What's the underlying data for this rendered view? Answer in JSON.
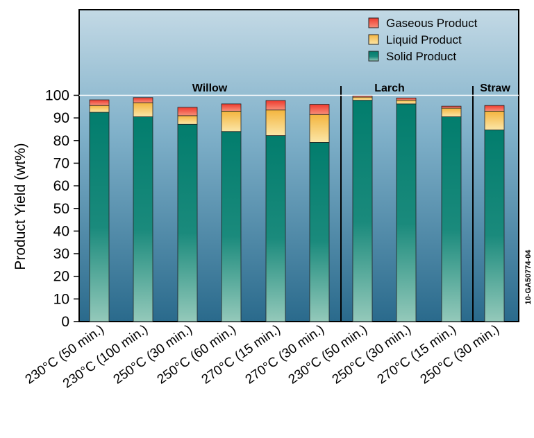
{
  "chart_data": {
    "type": "bar",
    "stacked": true,
    "ylabel": "Product Yield (wt%)",
    "ylim": [
      0,
      100
    ],
    "yticks": [
      0,
      10,
      20,
      30,
      40,
      50,
      60,
      70,
      80,
      90,
      100
    ],
    "categories": [
      "230°C (50 min.)",
      "230°C (100 min.)",
      "250°C (30 min.)",
      "250°C (60 min.)",
      "270°C (15 min.)",
      "270°C (30 min.)",
      "230°C (50 min.)",
      "250°C (30 min.)",
      "270°C (15 min.)",
      "250°C (30 min.)"
    ],
    "groups": [
      {
        "label": "Willow",
        "start": 0,
        "end": 5
      },
      {
        "label": "Larch",
        "start": 6,
        "end": 8
      },
      {
        "label": "Straw",
        "start": 9,
        "end": 9
      }
    ],
    "series": [
      {
        "name": "Solid Product",
        "color": "#0b8a7a",
        "values": [
          92.5,
          90.5,
          87.2,
          84.0,
          82.2,
          79.2,
          97.8,
          96.2,
          90.5,
          84.7
        ]
      },
      {
        "name": "Liquid Product",
        "color": "#f6c24c",
        "values": [
          3.0,
          6.2,
          3.8,
          9.0,
          11.3,
          12.3,
          1.4,
          1.7,
          3.8,
          8.3
        ]
      },
      {
        "name": "Gaseous Product",
        "color": "#ef4a3c",
        "values": [
          2.5,
          2.3,
          3.7,
          3.2,
          4.2,
          4.5,
          0.5,
          0.9,
          0.9,
          2.5
        ]
      }
    ],
    "legend_position": "top-right",
    "grid": false
  },
  "side_label": "10-GA50774-04"
}
